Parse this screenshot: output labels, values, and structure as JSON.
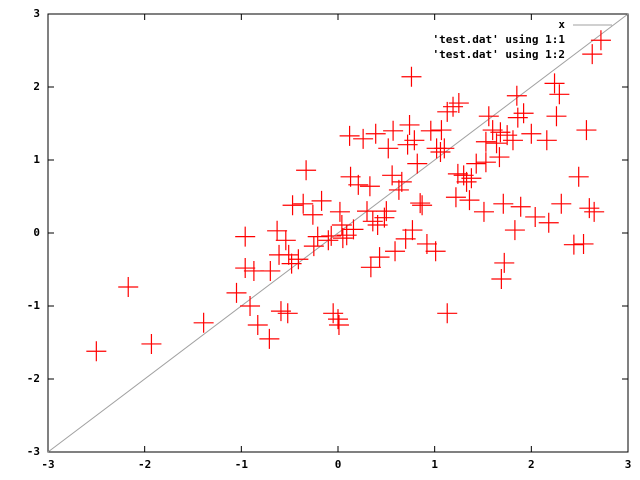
{
  "chart_data": {
    "type": "scatter",
    "xlim": [
      -3,
      3
    ],
    "ylim": [
      -3,
      3
    ],
    "xticks": [
      -3,
      -2,
      -1,
      0,
      1,
      2,
      3
    ],
    "yticks": [
      -3,
      -2,
      -1,
      0,
      1,
      2,
      3
    ],
    "legend_position": "top-right",
    "x": [
      -2.5,
      -2.17,
      -1.93,
      -1.39,
      -1.05,
      -0.96,
      -0.96,
      -0.91,
      -0.87,
      -0.83,
      -0.71,
      -0.7,
      -0.63,
      -0.61,
      -0.59,
      -0.52,
      -0.54,
      -0.51,
      -0.48,
      -0.47,
      -0.41,
      -0.36,
      -0.33,
      -0.26,
      -0.25,
      -0.21,
      -0.17,
      -0.1,
      -0.07,
      -0.05,
      0.01,
      0.0,
      0.02,
      0.05,
      0.04,
      0.09,
      0.12,
      0.13,
      0.16,
      0.21,
      0.26,
      0.3,
      0.34,
      0.33,
      0.36,
      0.39,
      0.41,
      0.43,
      0.48,
      0.5,
      0.52,
      0.56,
      0.57,
      0.59,
      0.63,
      0.66,
      0.7,
      0.72,
      0.74,
      0.76,
      0.77,
      0.79,
      0.82,
      0.85,
      0.87,
      0.92,
      0.96,
      1.01,
      1.02,
      1.06,
      1.07,
      1.1,
      1.13,
      1.13,
      1.19,
      1.22,
      1.24,
      1.25,
      1.3,
      1.33,
      1.36,
      1.38,
      1.43,
      1.51,
      1.53,
      1.53,
      1.56,
      1.6,
      1.64,
      1.67,
      1.68,
      1.71,
      1.69,
      1.72,
      1.75,
      1.81,
      1.83,
      1.85,
      1.86,
      1.89,
      1.92,
      2.0,
      2.04,
      2.16,
      2.18,
      2.24,
      2.26,
      2.29,
      2.31,
      2.44,
      2.49,
      2.54,
      2.57,
      2.6,
      2.63,
      2.65,
      2.72
    ],
    "series": [
      {
        "name": "x",
        "type": "line",
        "color": "#a0a0a0",
        "x": [
          -3,
          3
        ],
        "values": [
          -3,
          3
        ]
      },
      {
        "name": "'test.dat' using 1:1"
      },
      {
        "name": "'test.dat' using 1:2",
        "color": "#ff0000",
        "values": [
          -1.62,
          -0.74,
          -1.52,
          -1.23,
          -0.82,
          -0.05,
          -0.48,
          -1.0,
          -0.52,
          -1.26,
          -1.45,
          -0.52,
          0.03,
          -0.3,
          -1.07,
          -1.1,
          -0.1,
          -0.3,
          -0.42,
          0.38,
          -0.36,
          0.4,
          0.86,
          0.25,
          -0.18,
          -0.05,
          0.44,
          -0.1,
          -0.04,
          -1.1,
          -1.26,
          -1.18,
          0.29,
          -0.07,
          0.11,
          -0.03,
          1.33,
          0.77,
          0.05,
          0.66,
          1.29,
          0.3,
          -0.47,
          0.64,
          0.16,
          1.36,
          0.11,
          -0.33,
          0.21,
          0.3,
          1.16,
          0.79,
          1.4,
          -0.25,
          0.59,
          0.7,
          -0.08,
          1.21,
          1.48,
          2.14,
          0.04,
          1.27,
          0.95,
          0.41,
          0.38,
          -0.15,
          1.4,
          -0.25,
          1.16,
          1.11,
          1.41,
          1.16,
          -1.1,
          1.66,
          1.73,
          0.49,
          0.81,
          1.78,
          0.79,
          0.7,
          0.45,
          0.75,
          0.95,
          0.29,
          1.25,
          0.97,
          1.6,
          1.41,
          1.23,
          1.04,
          1.38,
          0.4,
          -0.63,
          -0.41,
          1.34,
          1.27,
          0.04,
          1.88,
          1.58,
          0.36,
          1.64,
          1.36,
          0.22,
          1.27,
          0.14,
          2.05,
          1.6,
          1.9,
          0.4,
          -0.16,
          0.77,
          -0.15,
          1.41,
          0.34,
          2.45,
          0.29,
          2.64
        ]
      }
    ]
  }
}
